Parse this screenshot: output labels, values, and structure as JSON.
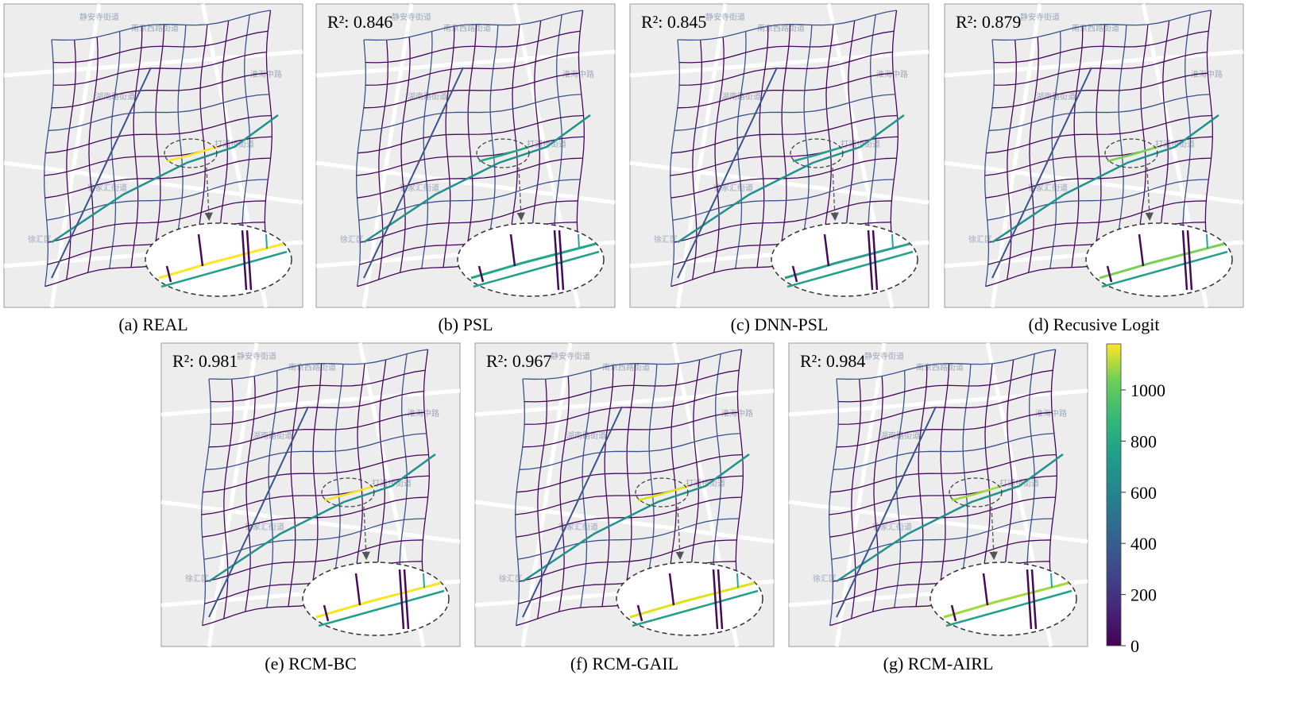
{
  "panels": [
    {
      "caption": "(a) REAL",
      "highlight_color": "#fde725"
    },
    {
      "caption": "(b) PSL",
      "r2": "R²: 0.846",
      "highlight_color": "#22a884"
    },
    {
      "caption": "(c) DNN-PSL",
      "r2": "R²: 0.845",
      "highlight_color": "#2a9d8f"
    },
    {
      "caption": "(d) Recusive Logit",
      "r2": "R²: 0.879",
      "highlight_color": "#7ad151"
    },
    {
      "caption": "(e) RCM-BC",
      "r2": "R²: 0.981",
      "highlight_color": "#f5e61f"
    },
    {
      "caption": "(f) RCM-GAIL",
      "r2": "R²: 0.967",
      "highlight_color": "#dde318"
    },
    {
      "caption": "(g) RCM-AIRL",
      "r2": "R²: 0.984",
      "highlight_color": "#a0da39"
    }
  ],
  "map_labels": [
    "静安寺街道",
    "南京西路街道",
    "淮海中路",
    "湖南路街道",
    "打浦桥街道",
    "徐家汇街道",
    "徐汇区"
  ],
  "colorbar": {
    "lim": [
      0,
      1180
    ],
    "ticks": [
      0,
      200,
      400,
      600,
      800,
      1000
    ]
  }
}
